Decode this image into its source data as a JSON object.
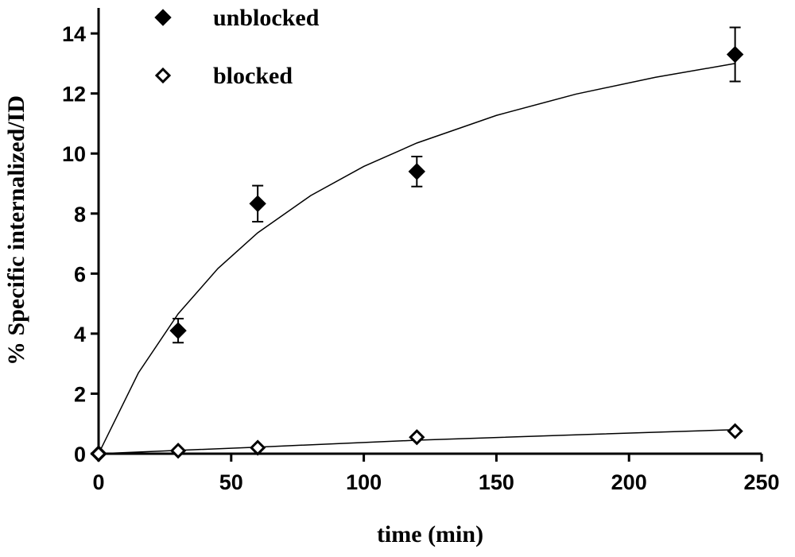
{
  "chart_data": {
    "type": "scatter",
    "x_label": "time (min)",
    "y_label": "% Specific internalized/ID",
    "x": [
      0,
      30,
      60,
      120,
      240
    ],
    "series": [
      {
        "name": "unblocked",
        "color": "#000000",
        "marker": "filled-diamond",
        "values": [
          0,
          4.1,
          8.33,
          9.4,
          13.3
        ],
        "errors": [
          0,
          0.4,
          0.6,
          0.5,
          0.9
        ]
      },
      {
        "name": "blocked",
        "color": "#000000",
        "marker": "open-diamond",
        "values": [
          0,
          0.1,
          0.2,
          0.55,
          0.75
        ]
      }
    ],
    "fits": [
      {
        "x": [
          0,
          15,
          30,
          45,
          60,
          80,
          100,
          120,
          150,
          180,
          210,
          240
        ],
        "values": [
          0,
          2.69,
          4.66,
          6.17,
          7.36,
          8.6,
          9.57,
          10.35,
          11.27,
          11.98,
          12.54,
          13.0
        ]
      },
      {
        "x": [
          0,
          60,
          120,
          180,
          240
        ],
        "values": [
          0,
          0.22,
          0.45,
          0.63,
          0.8
        ]
      }
    ],
    "xlim": [
      0,
      250
    ],
    "xticks": [
      0,
      50,
      100,
      150,
      200,
      250
    ],
    "ylim": [
      0,
      14.85
    ],
    "yticks": [
      0,
      2,
      4,
      6,
      8,
      10,
      12,
      14
    ],
    "legend": "upper-left"
  }
}
